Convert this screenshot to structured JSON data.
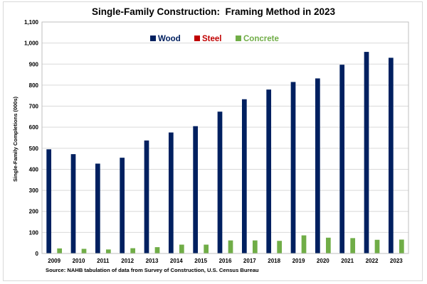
{
  "chart_data": {
    "type": "bar",
    "title": "Single-Family Construction:  Framing Method in 2023",
    "ylabel": "Single-Family Completions (000s)",
    "xlabel": "",
    "ylim": [
      0,
      1100
    ],
    "yticks": [
      "0",
      "100",
      "200",
      "300",
      "400",
      "500",
      "600",
      "700",
      "800",
      "900",
      "1,000",
      "1,100"
    ],
    "categories": [
      "2009",
      "2010",
      "2011",
      "2012",
      "2013",
      "2014",
      "2015",
      "2016",
      "2017",
      "2018",
      "2019",
      "2020",
      "2021",
      "2022",
      "2023"
    ],
    "series": [
      {
        "name": "Wood",
        "color": "#002060",
        "values": [
          495,
          472,
          427,
          455,
          537,
          575,
          605,
          674,
          733,
          779,
          815,
          832,
          897,
          958,
          930
        ]
      },
      {
        "name": "Steel",
        "color": "#c00000",
        "values": [
          1,
          1,
          1,
          1,
          1,
          1,
          1,
          1,
          1,
          1,
          1,
          2,
          1,
          1,
          1
        ]
      },
      {
        "name": "Concrete",
        "color": "#70ad47",
        "values": [
          24,
          22,
          19,
          25,
          30,
          42,
          42,
          62,
          62,
          60,
          86,
          75,
          73,
          65,
          66
        ]
      }
    ],
    "legend_position": "top-center",
    "grid": true
  },
  "source": "Source: NAHB tabulation of data from Survey of Construction, U.S. Census Bureau"
}
